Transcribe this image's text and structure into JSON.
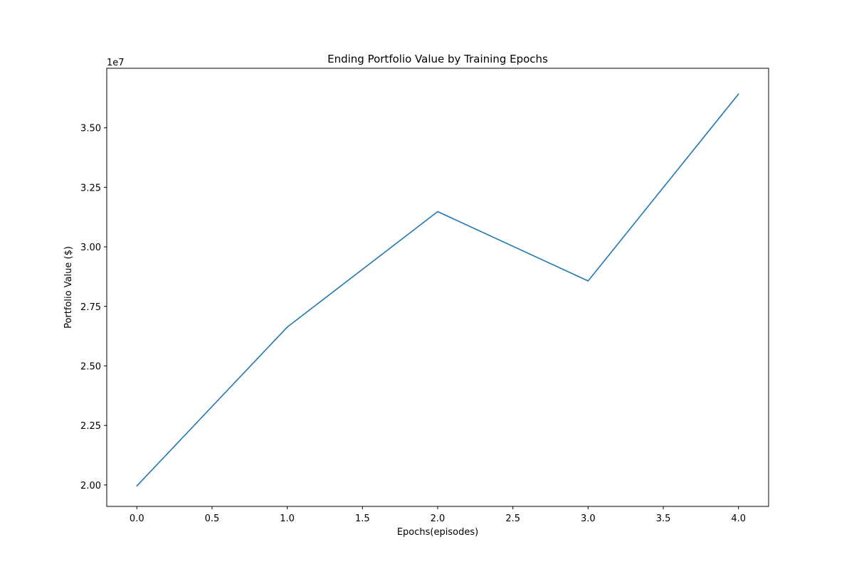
{
  "chart_data": {
    "type": "line",
    "title": "Ending Portfolio Value by Training Epochs",
    "xlabel": "Epochs(episodes)",
    "ylabel": "Portfolio Value ($)",
    "y_offset_label": "1e7",
    "xlim": [
      -0.2,
      4.2
    ],
    "ylim": [
      1.91,
      3.75
    ],
    "x_ticks": [
      0.0,
      0.5,
      1.0,
      1.5,
      2.0,
      2.5,
      3.0,
      3.5,
      4.0
    ],
    "x_tick_labels": [
      "0.0",
      "0.5",
      "1.0",
      "1.5",
      "2.0",
      "2.5",
      "3.0",
      "3.5",
      "4.0"
    ],
    "y_ticks": [
      2.0,
      2.25,
      2.5,
      2.75,
      3.0,
      3.25,
      3.5
    ],
    "y_tick_labels": [
      "2.00",
      "2.25",
      "2.50",
      "2.75",
      "3.00",
      "3.25",
      "3.50"
    ],
    "grid": false,
    "legend": "none",
    "series": [
      {
        "color": "#1f77b4",
        "x": [
          0,
          1,
          2,
          3,
          4
        ],
        "y": [
          1.996,
          2.663,
          3.148,
          2.857,
          3.642
        ]
      }
    ]
  }
}
